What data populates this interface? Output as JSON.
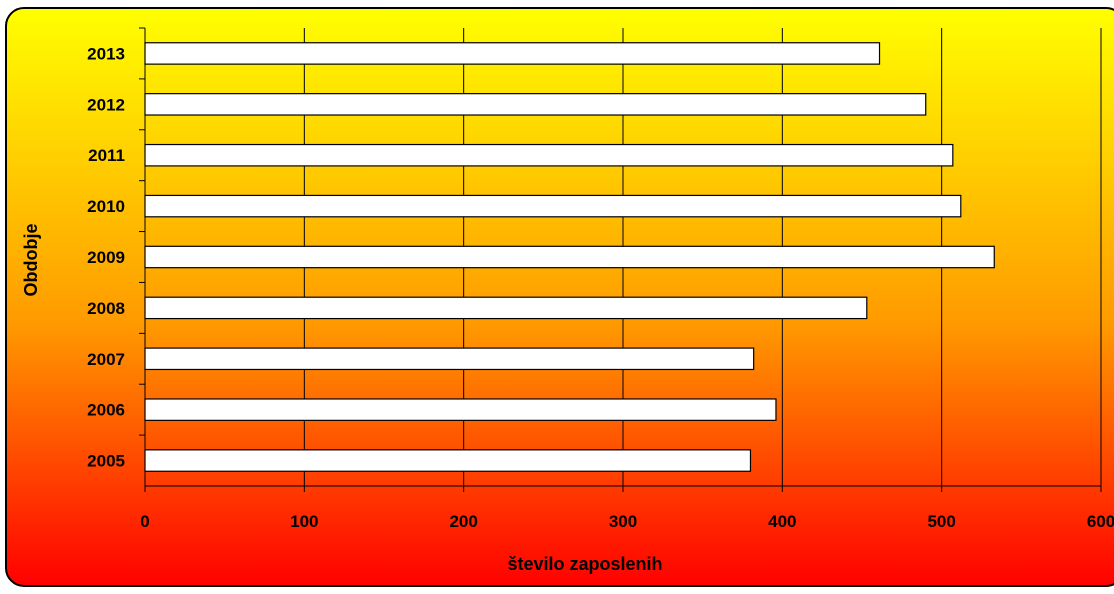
{
  "chart_data": {
    "type": "bar",
    "orientation": "horizontal",
    "categories": [
      "2005",
      "2006",
      "2007",
      "2008",
      "2009",
      "2010",
      "2011",
      "2012",
      "2013"
    ],
    "values": [
      380,
      396,
      382,
      453,
      533,
      512,
      507,
      490,
      461
    ],
    "xlabel": "število zaposlenih",
    "ylabel": "Obdobje",
    "xlim": [
      0,
      600
    ],
    "x_ticks": [
      "0",
      "100",
      "200",
      "300",
      "400",
      "500",
      "600"
    ],
    "grid": "vertical",
    "legend": "none",
    "bar_color": "#ffffff",
    "background_gradient": [
      "#ffff00",
      "#ff9900",
      "#ff0000"
    ]
  }
}
